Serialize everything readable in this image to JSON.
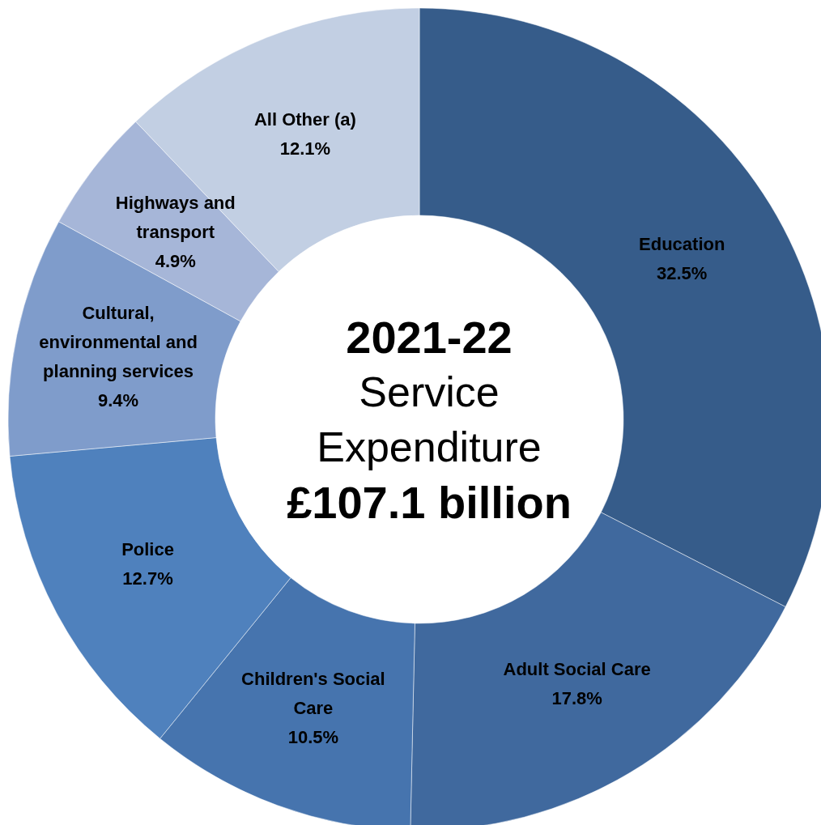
{
  "chart_data": {
    "type": "donut",
    "title": "2021-22",
    "subtitle": "Service Expenditure",
    "annotations": [
      "£107.1 billion"
    ],
    "categories": [
      "Education",
      "Adult Social Care",
      "Children's Social Care",
      "Police",
      "Cultural, environmental and planning services",
      "Highways and transport",
      "All Other (a)"
    ],
    "values": [
      32.5,
      17.8,
      10.5,
      12.7,
      9.4,
      4.9,
      12.1
    ],
    "colors": [
      "#365c8a",
      "#40699e",
      "#4674ae",
      "#4f81bd",
      "#7f9ccb",
      "#a6b6d8",
      "#c2cfe3"
    ],
    "value_labels": [
      "32.5%",
      "17.8%",
      "10.5%",
      "12.7%",
      "9.4%",
      "4.9%",
      "12.1%"
    ],
    "legend": false
  }
}
